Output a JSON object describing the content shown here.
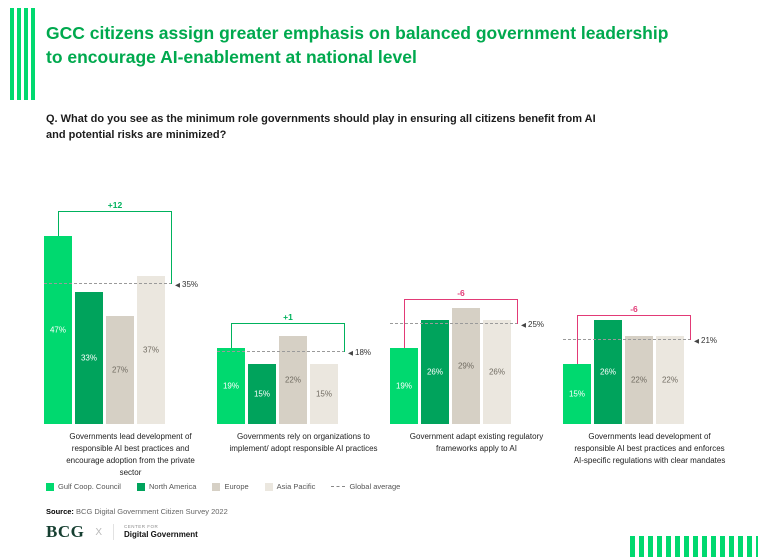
{
  "header": {
    "title": "GCC citizens assign greater emphasis on balanced government leadership to encourage AI-enablement at national level",
    "question": "Q. What do you see as the minimum role governments should play in ensuring all citizens benefit from AI and potential risks are minimized?"
  },
  "colors": {
    "brand_green": "#00D96F",
    "title_green": "#00A94E",
    "positive_delta": "#00B25D",
    "negative_delta": "#E23A76",
    "avg_line": "#9A9A9A"
  },
  "chart_data": {
    "type": "bar",
    "value_suffix": "%",
    "series_names": [
      "Gulf Coop. Council",
      "North America",
      "Europe",
      "Asia Pacific"
    ],
    "series_colors": [
      "#00D96F",
      "#00A35C",
      "#D6D0C5",
      "#EBE7DF"
    ],
    "label_colors": [
      "#FFFFFF",
      "#FFFFFF",
      "#6F6A60",
      "#6F6A60"
    ],
    "ylim": [
      0,
      50
    ],
    "grid": false,
    "legend_position": "bottom-left",
    "global_average_label": "Global average",
    "groups": [
      {
        "label": "Governments lead development of responsible AI best practices and encourage adoption from the private sector",
        "values": [
          47,
          33,
          27,
          37
        ],
        "global_average": 35,
        "delta": "+12",
        "delta_sign": "positive"
      },
      {
        "label": "Governments rely on organizations to implement/ adopt responsible AI practices",
        "values": [
          19,
          15,
          22,
          15
        ],
        "global_average": 18,
        "delta": "+1",
        "delta_sign": "positive"
      },
      {
        "label": "Government adapt existing regulatory frameworks apply to AI",
        "values": [
          19,
          26,
          29,
          26
        ],
        "global_average": 25,
        "delta": "-6",
        "delta_sign": "negative"
      },
      {
        "label": "Governments lead development of responsible AI best practices and enforces AI-specific regulations with clear mandates",
        "values": [
          15,
          26,
          22,
          22
        ],
        "global_average": 21,
        "delta": "-6",
        "delta_sign": "negative"
      }
    ],
    "legend": [
      {
        "label": "Gulf Coop. Council",
        "color": "#00D96F"
      },
      {
        "label": "North America",
        "color": "#00A35C"
      },
      {
        "label": "Europe",
        "color": "#D6D0C5"
      },
      {
        "label": "Asia Pacific",
        "color": "#EBE7DF"
      },
      {
        "label": "Global average",
        "style": "dashed"
      }
    ]
  },
  "footer": {
    "source_label": "Source:",
    "source_text": "BCG Digital Government Citizen Survey 2022",
    "bcg_logo": "BCG",
    "separator": "X",
    "partner_top": "Center for",
    "partner_bottom": "Digital Government"
  }
}
